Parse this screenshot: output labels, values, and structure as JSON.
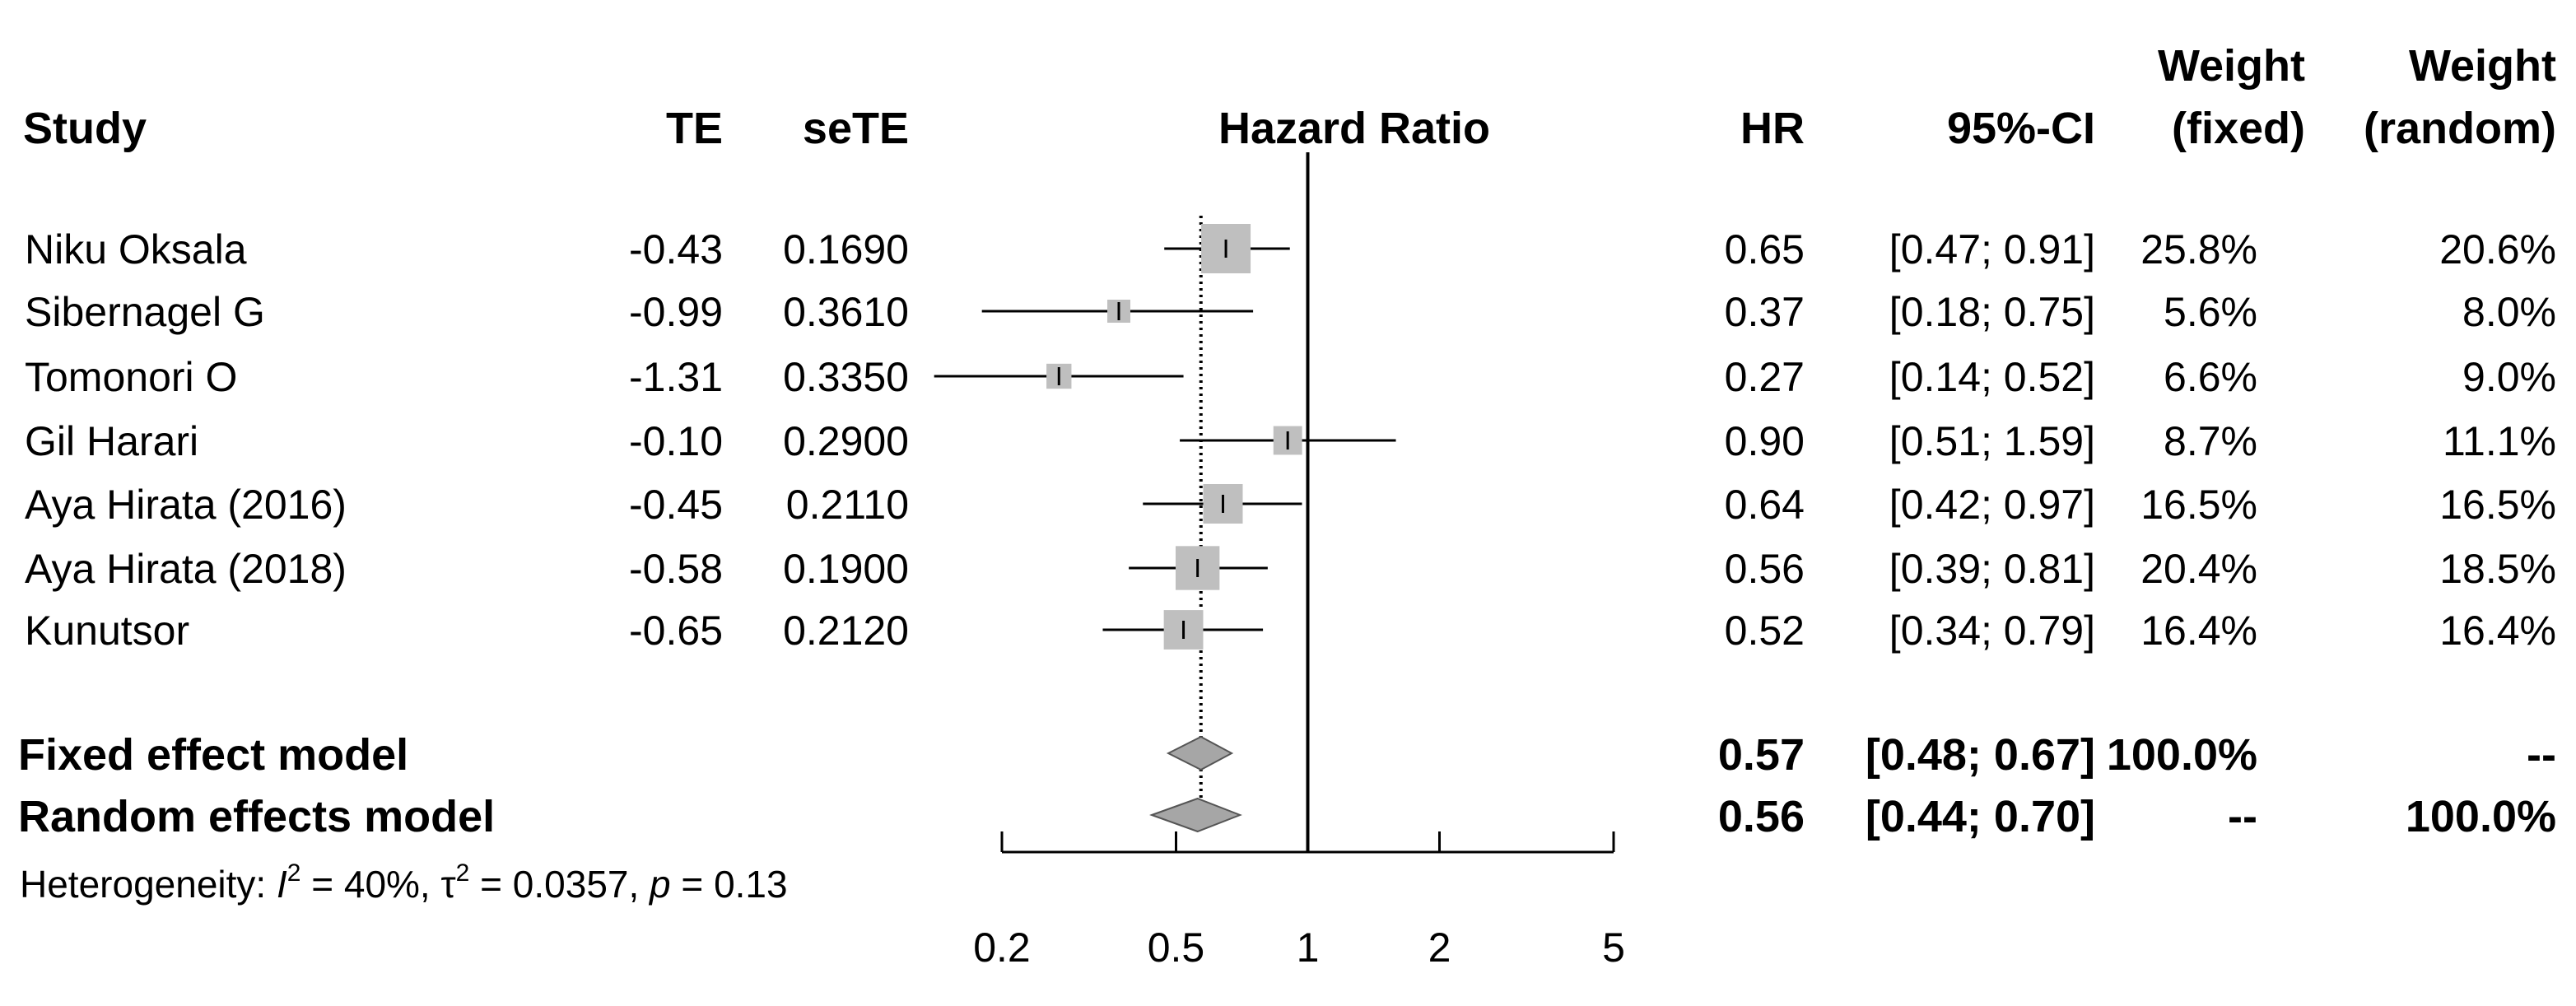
{
  "chart_data": {
    "type": "forest",
    "title": "Hazard Ratio",
    "x_scale": "log",
    "xlim": [
      0.2,
      5
    ],
    "xticks": [
      0.2,
      0.5,
      1,
      2,
      5
    ],
    "tick_labels": [
      "0.2",
      "0.5",
      "1",
      "2",
      "5"
    ],
    "reference_line": 1,
    "columns": {
      "study": "Study",
      "te": "TE",
      "sete": "seTE",
      "plot": "Hazard Ratio",
      "hr": "HR",
      "ci": "95%-CI",
      "weight_fixed_line1": "Weight",
      "weight_fixed_line2": "(fixed)",
      "weight_random_line1": "Weight",
      "weight_random_line2": "(random)"
    },
    "studies": [
      {
        "name": "Niku Oksala",
        "te": "-0.43",
        "sete": "0.1690",
        "hr_text": "0.65",
        "ci_text": "[0.47; 0.91]",
        "w_fixed": "25.8%",
        "w_random": "20.6%",
        "hr": 0.65,
        "lower": 0.47,
        "upper": 0.91,
        "weight_fixed": 25.8
      },
      {
        "name": "Sibernagel G",
        "te": "-0.99",
        "sete": "0.3610",
        "hr_text": "0.37",
        "ci_text": "[0.18; 0.75]",
        "w_fixed": "5.6%",
        "w_random": "8.0%",
        "hr": 0.37,
        "lower": 0.18,
        "upper": 0.75,
        "weight_fixed": 5.6
      },
      {
        "name": "Tomonori O",
        "te": "-1.31",
        "sete": "0.3350",
        "hr_text": "0.27",
        "ci_text": "[0.14; 0.52]",
        "w_fixed": "6.6%",
        "w_random": "9.0%",
        "hr": 0.27,
        "lower": 0.14,
        "upper": 0.52,
        "weight_fixed": 6.6
      },
      {
        "name": "Gil Harari",
        "te": "-0.10",
        "sete": "0.2900",
        "hr_text": "0.90",
        "ci_text": "[0.51; 1.59]",
        "w_fixed": "8.7%",
        "w_random": "11.1%",
        "hr": 0.9,
        "lower": 0.51,
        "upper": 1.59,
        "weight_fixed": 8.7
      },
      {
        "name": "Aya Hirata (2016)",
        "te": "-0.45",
        "sete": "0.2110",
        "hr_text": "0.64",
        "ci_text": "[0.42; 0.97]",
        "w_fixed": "16.5%",
        "w_random": "16.5%",
        "hr": 0.64,
        "lower": 0.42,
        "upper": 0.97,
        "weight_fixed": 16.5
      },
      {
        "name": "Aya Hirata (2018)",
        "te": "-0.58",
        "sete": "0.1900",
        "hr_text": "0.56",
        "ci_text": "[0.39; 0.81]",
        "w_fixed": "20.4%",
        "w_random": "18.5%",
        "hr": 0.56,
        "lower": 0.39,
        "upper": 0.81,
        "weight_fixed": 20.4
      },
      {
        "name": "Kunutsor",
        "te": "-0.65",
        "sete": "0.2120",
        "hr_text": "0.52",
        "ci_text": "[0.34; 0.79]",
        "w_fixed": "16.4%",
        "w_random": "16.4%",
        "hr": 0.52,
        "lower": 0.34,
        "upper": 0.79,
        "weight_fixed": 16.4
      }
    ],
    "models": [
      {
        "name": "Fixed effect model",
        "hr_text": "0.57",
        "ci_text": "[0.48; 0.67]",
        "w_fixed": "100.0%",
        "w_random": "--",
        "hr": 0.57,
        "lower": 0.48,
        "upper": 0.67
      },
      {
        "name": "Random effects model",
        "hr_text": "0.56",
        "ci_text": "[0.44; 0.70]",
        "w_fixed": "--",
        "w_random": "100.0%",
        "hr": 0.56,
        "lower": 0.44,
        "upper": 0.7
      }
    ],
    "heterogeneity": {
      "prefix": "Heterogeneity: ",
      "i2_symbol": "I",
      "i2_value": " = 40%, ",
      "tau2_symbol": "τ",
      "tau2_value": " = 0.0357, ",
      "p_symbol": "p",
      "p_value": " = 0.13",
      "i2": 40,
      "tau2": 0.0357,
      "p": 0.13
    },
    "colors": {
      "box": "#bfbfbf",
      "diamond": "#a6a6a6",
      "line": "#000000"
    }
  }
}
